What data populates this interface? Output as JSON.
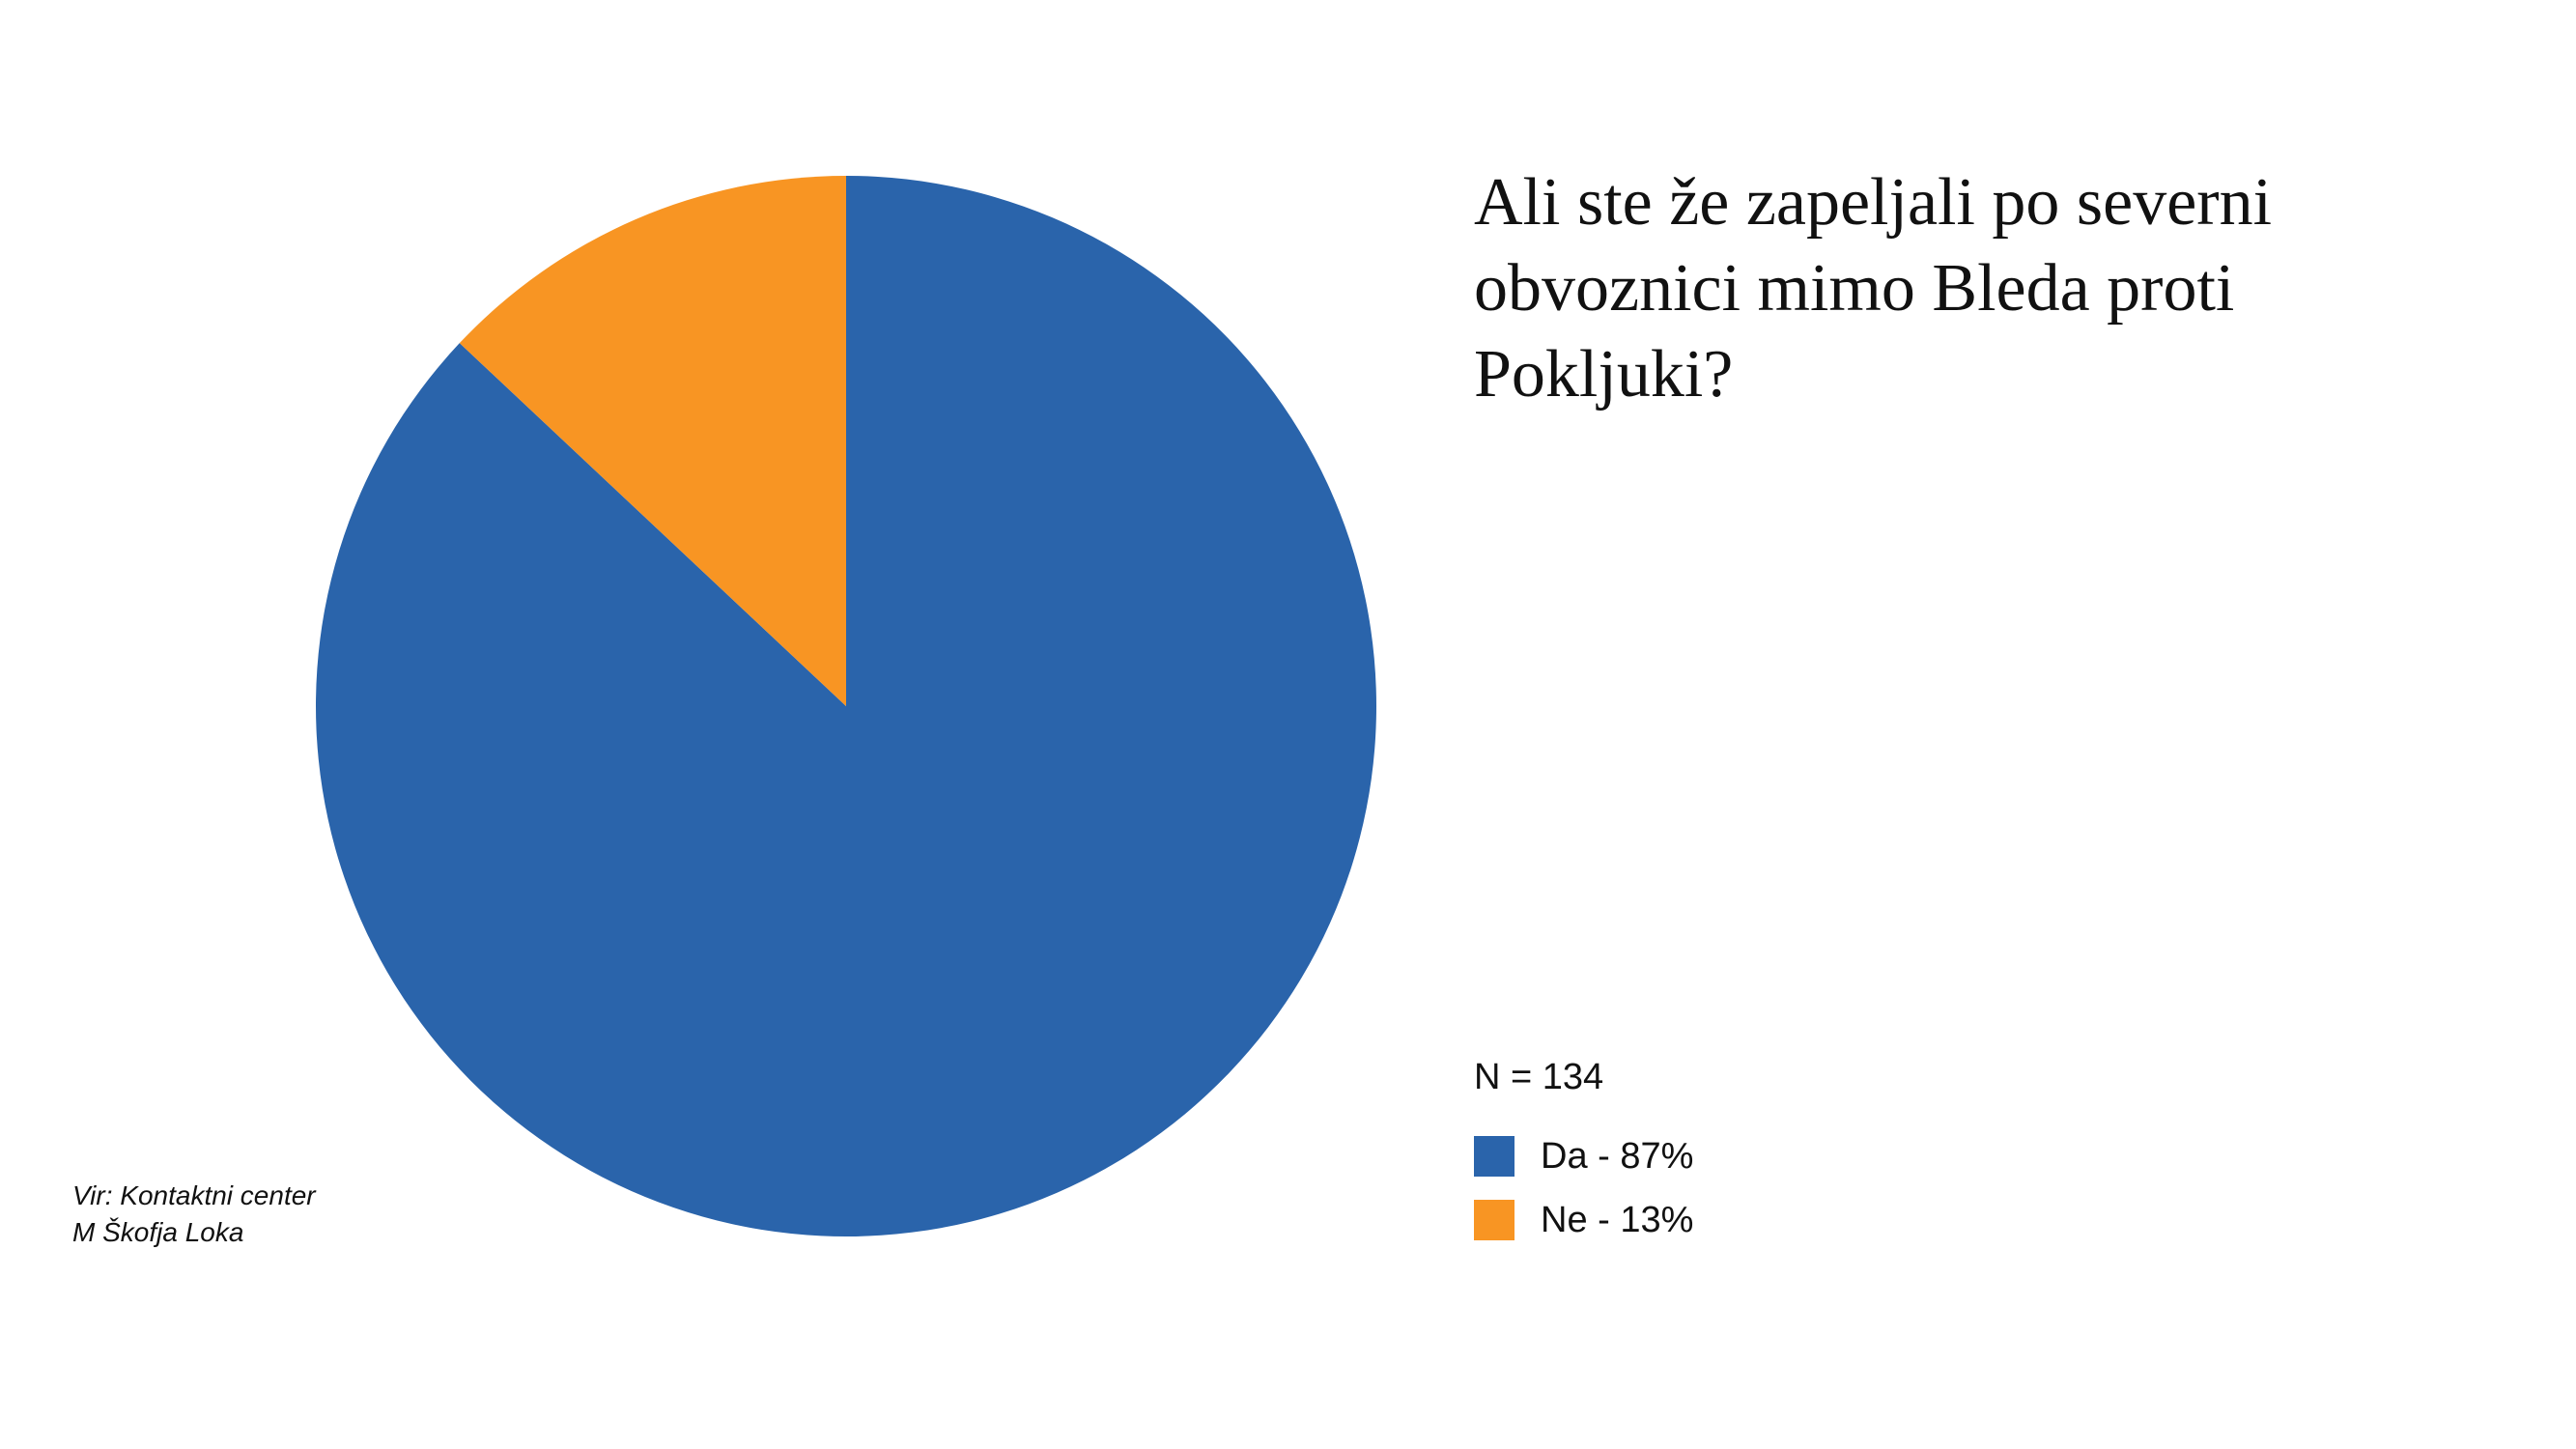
{
  "chart_data": {
    "type": "pie",
    "title": "Ali ste že zapeljali po severni obvoznici mimo Bleda proti Pokljuki?",
    "annotation": "N = 134",
    "source": [
      "Vir: Kontaktni center",
      "M Škofja Loka"
    ],
    "categories": [
      "Da - 87%",
      "Ne - 13%"
    ],
    "values": [
      87,
      13
    ],
    "colors": [
      "#2a64ab",
      "#f89523"
    ]
  }
}
